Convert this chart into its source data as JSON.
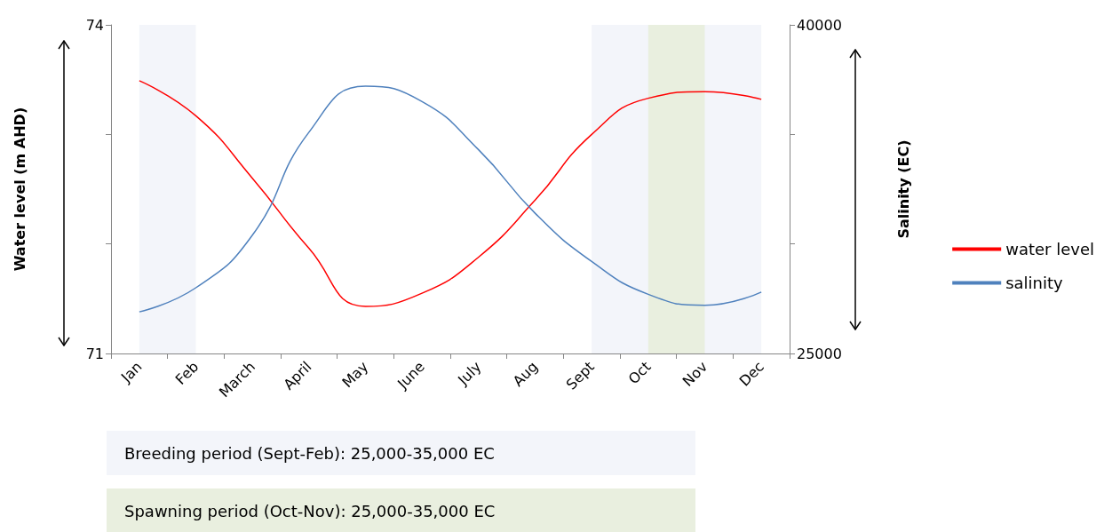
{
  "chart_data": {
    "type": "line",
    "categories": [
      "Jan",
      "Feb",
      "March",
      "April",
      "May",
      "June",
      "July",
      "Aug",
      "Sept",
      "Oct",
      "Nov",
      "Dec"
    ],
    "series": [
      {
        "name": "water level",
        "color": "#ff0000",
        "values": [
          73.49,
          73.17,
          72.6,
          71.96,
          71.43,
          71.55,
          71.88,
          72.4,
          73.0,
          73.33,
          73.39,
          73.32
        ]
      },
      {
        "name": "salinity",
        "color": "#4f81bd",
        "axis": "y2",
        "values": [
          26900,
          28000,
          30400,
          35100,
          37200,
          36500,
          34300,
          31400,
          29200,
          27700,
          27200,
          27800
        ]
      }
    ],
    "ylabel": "Water level (m AHD)",
    "y2label": "Salinity (EC)",
    "ylim": [
      71,
      74
    ],
    "yticks": [
      71,
      {
        "value": 72,
        "label": null
      },
      {
        "value": 73,
        "label": null
      },
      74
    ],
    "y2lim": [
      25000,
      40000
    ],
    "y2ticks": [
      25000,
      {
        "value": 30000,
        "label": null
      },
      {
        "value": 35000,
        "label": null
      },
      40000
    ],
    "bands": [
      {
        "axis": "x",
        "from": "Sept",
        "to": "Dec",
        "color": "#f3f5fa"
      },
      {
        "axis": "x",
        "from": "Jan",
        "to": "Feb",
        "color": "#f3f5fa"
      },
      {
        "axis": "x",
        "from": "Oct",
        "to": "Nov",
        "color": "#e9efdf"
      }
    ],
    "annotations": [
      "Breeding period (Sept-Feb):  25,000-35,000 EC",
      "Spawning period (Oct-Nov): 25,000-35,000 EC"
    ],
    "legend": "right",
    "grid": false,
    "marker": "none",
    "line_style": "solid"
  }
}
